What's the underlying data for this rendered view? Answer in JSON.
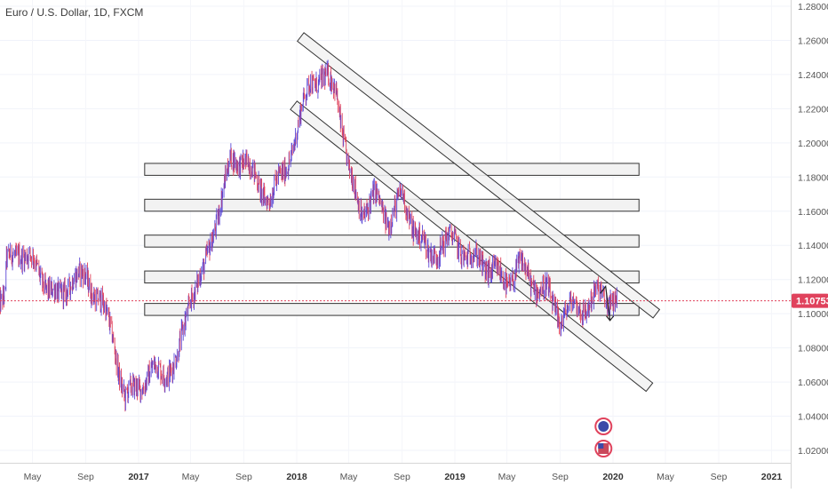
{
  "symbol_title": "Euro / U.S. Dollar, 1D, FXCM",
  "price_badge": "1.10753",
  "colors": {
    "up": "#5b47d6",
    "down": "#e0425c",
    "price_line": "#e0425c",
    "badge": "#e0425c",
    "zone_fill": "#f2f2f2",
    "zone_stroke": "#333333",
    "axis_text": "#555555"
  },
  "chart_data": {
    "type": "candlestick",
    "title": "Euro / U.S. Dollar, 1D, FXCM",
    "y_range": [
      1.01,
      1.28
    ],
    "y_ticks": [
      "1.28000",
      "1.26000",
      "1.24000",
      "1.22000",
      "1.20000",
      "1.18000",
      "1.16000",
      "1.14000",
      "1.12000",
      "1.10000",
      "1.08000",
      "1.06000",
      "1.04000",
      "1.02000"
    ],
    "x_ticks": [
      "May",
      "Sep",
      "2017",
      "May",
      "Sep",
      "2018",
      "May",
      "Sep",
      "2019",
      "May",
      "Sep",
      "2020",
      "May",
      "Sep",
      "2021"
    ],
    "current_price": 1.10753,
    "price_path": [
      [
        "2016-03-01",
        1.128
      ],
      [
        "2016-04-01",
        1.138
      ],
      [
        "2016-05-01",
        1.13
      ],
      [
        "2016-06-01",
        1.118
      ],
      [
        "2016-07-01",
        1.108
      ],
      [
        "2016-08-01",
        1.122
      ],
      [
        "2016-09-01",
        1.12
      ],
      [
        "2016-10-01",
        1.11
      ],
      [
        "2016-11-01",
        1.088
      ],
      [
        "2016-12-01",
        1.05
      ],
      [
        "2017-01-01",
        1.058
      ],
      [
        "2017-02-01",
        1.066
      ],
      [
        "2017-03-01",
        1.066
      ],
      [
        "2017-04-01",
        1.072
      ],
      [
        "2017-05-01",
        1.112
      ],
      [
        "2017-06-01",
        1.124
      ],
      [
        "2017-07-01",
        1.158
      ],
      [
        "2017-08-01",
        1.188
      ],
      [
        "2017-09-01",
        1.192
      ],
      [
        "2017-10-01",
        1.176
      ],
      [
        "2017-11-01",
        1.168
      ],
      [
        "2017-12-01",
        1.182
      ],
      [
        "2018-01-01",
        1.205
      ],
      [
        "2018-02-01",
        1.238
      ],
      [
        "2018-03-01",
        1.236
      ],
      [
        "2018-04-01",
        1.235
      ],
      [
        "2018-05-01",
        1.182
      ],
      [
        "2018-06-01",
        1.16
      ],
      [
        "2018-07-01",
        1.168
      ],
      [
        "2018-08-01",
        1.155
      ],
      [
        "2018-09-01",
        1.168
      ],
      [
        "2018-10-01",
        1.15
      ],
      [
        "2018-11-01",
        1.134
      ],
      [
        "2018-12-01",
        1.14
      ],
      [
        "2019-01-01",
        1.144
      ],
      [
        "2019-02-01",
        1.132
      ],
      [
        "2019-03-01",
        1.132
      ],
      [
        "2019-04-01",
        1.124
      ],
      [
        "2019-05-01",
        1.118
      ],
      [
        "2019-06-01",
        1.128
      ],
      [
        "2019-07-01",
        1.118
      ],
      [
        "2019-08-01",
        1.112
      ],
      [
        "2019-09-01",
        1.098
      ],
      [
        "2019-10-01",
        1.104
      ],
      [
        "2019-11-01",
        1.104
      ],
      [
        "2019-12-01",
        1.112
      ],
      [
        "2020-01-01",
        1.108
      ]
    ],
    "horizontal_zones": [
      {
        "low": 1.181,
        "high": 1.188,
        "from": "2017-01-15",
        "to": "2020-03-01"
      },
      {
        "low": 1.16,
        "high": 1.167,
        "from": "2017-01-15",
        "to": "2020-03-01"
      },
      {
        "low": 1.139,
        "high": 1.146,
        "from": "2017-01-15",
        "to": "2020-03-01"
      },
      {
        "low": 1.118,
        "high": 1.125,
        "from": "2017-01-15",
        "to": "2020-03-01"
      },
      {
        "low": 1.099,
        "high": 1.106,
        "from": "2017-01-15",
        "to": "2020-03-01"
      }
    ],
    "descending_channels": [
      {
        "from": [
          "2018-01-10",
          1.262
        ],
        "to": [
          "2020-04-10",
          1.1
        ]
      },
      {
        "from": [
          "2017-12-25",
          1.222
        ],
        "to": [
          "2020-03-25",
          1.057
        ]
      }
    ],
    "arrow": {
      "from": [
        "2019-12-15",
        1.116
      ],
      "to": [
        "2019-12-25",
        1.096
      ]
    }
  }
}
